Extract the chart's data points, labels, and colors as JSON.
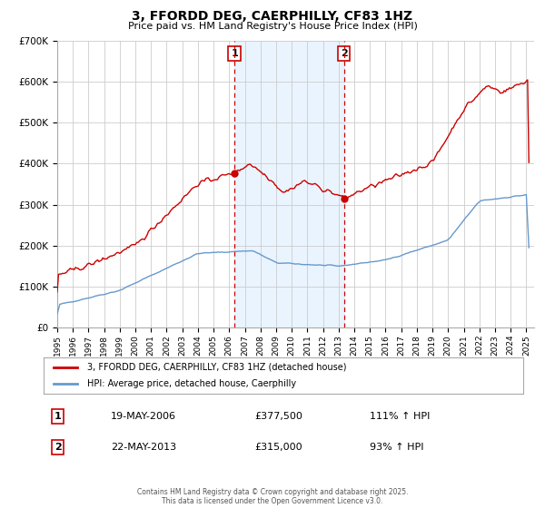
{
  "title": "3, FFORDD DEG, CAERPHILLY, CF83 1HZ",
  "subtitle": "Price paid vs. HM Land Registry's House Price Index (HPI)",
  "background_color": "#ffffff",
  "grid_color": "#cccccc",
  "red_line_color": "#cc0000",
  "blue_line_color": "#6699cc",
  "vline_color": "#cc0000",
  "vline_bg_color": "#ddeeff",
  "marker1_label": "1",
  "marker2_label": "2",
  "annotation1_date": "19-MAY-2006",
  "annotation1_price": "£377,500",
  "annotation1_hpi": "111% ↑ HPI",
  "annotation2_date": "22-MAY-2013",
  "annotation2_price": "£315,000",
  "annotation2_hpi": "93% ↑ HPI",
  "legend_line1": "3, FFORDD DEG, CAERPHILLY, CF83 1HZ (detached house)",
  "legend_line2": "HPI: Average price, detached house, Caerphilly",
  "footer": "Contains HM Land Registry data © Crown copyright and database right 2025.\nThis data is licensed under the Open Government Licence v3.0.",
  "ylim_max": 700000,
  "ylim_min": 0
}
